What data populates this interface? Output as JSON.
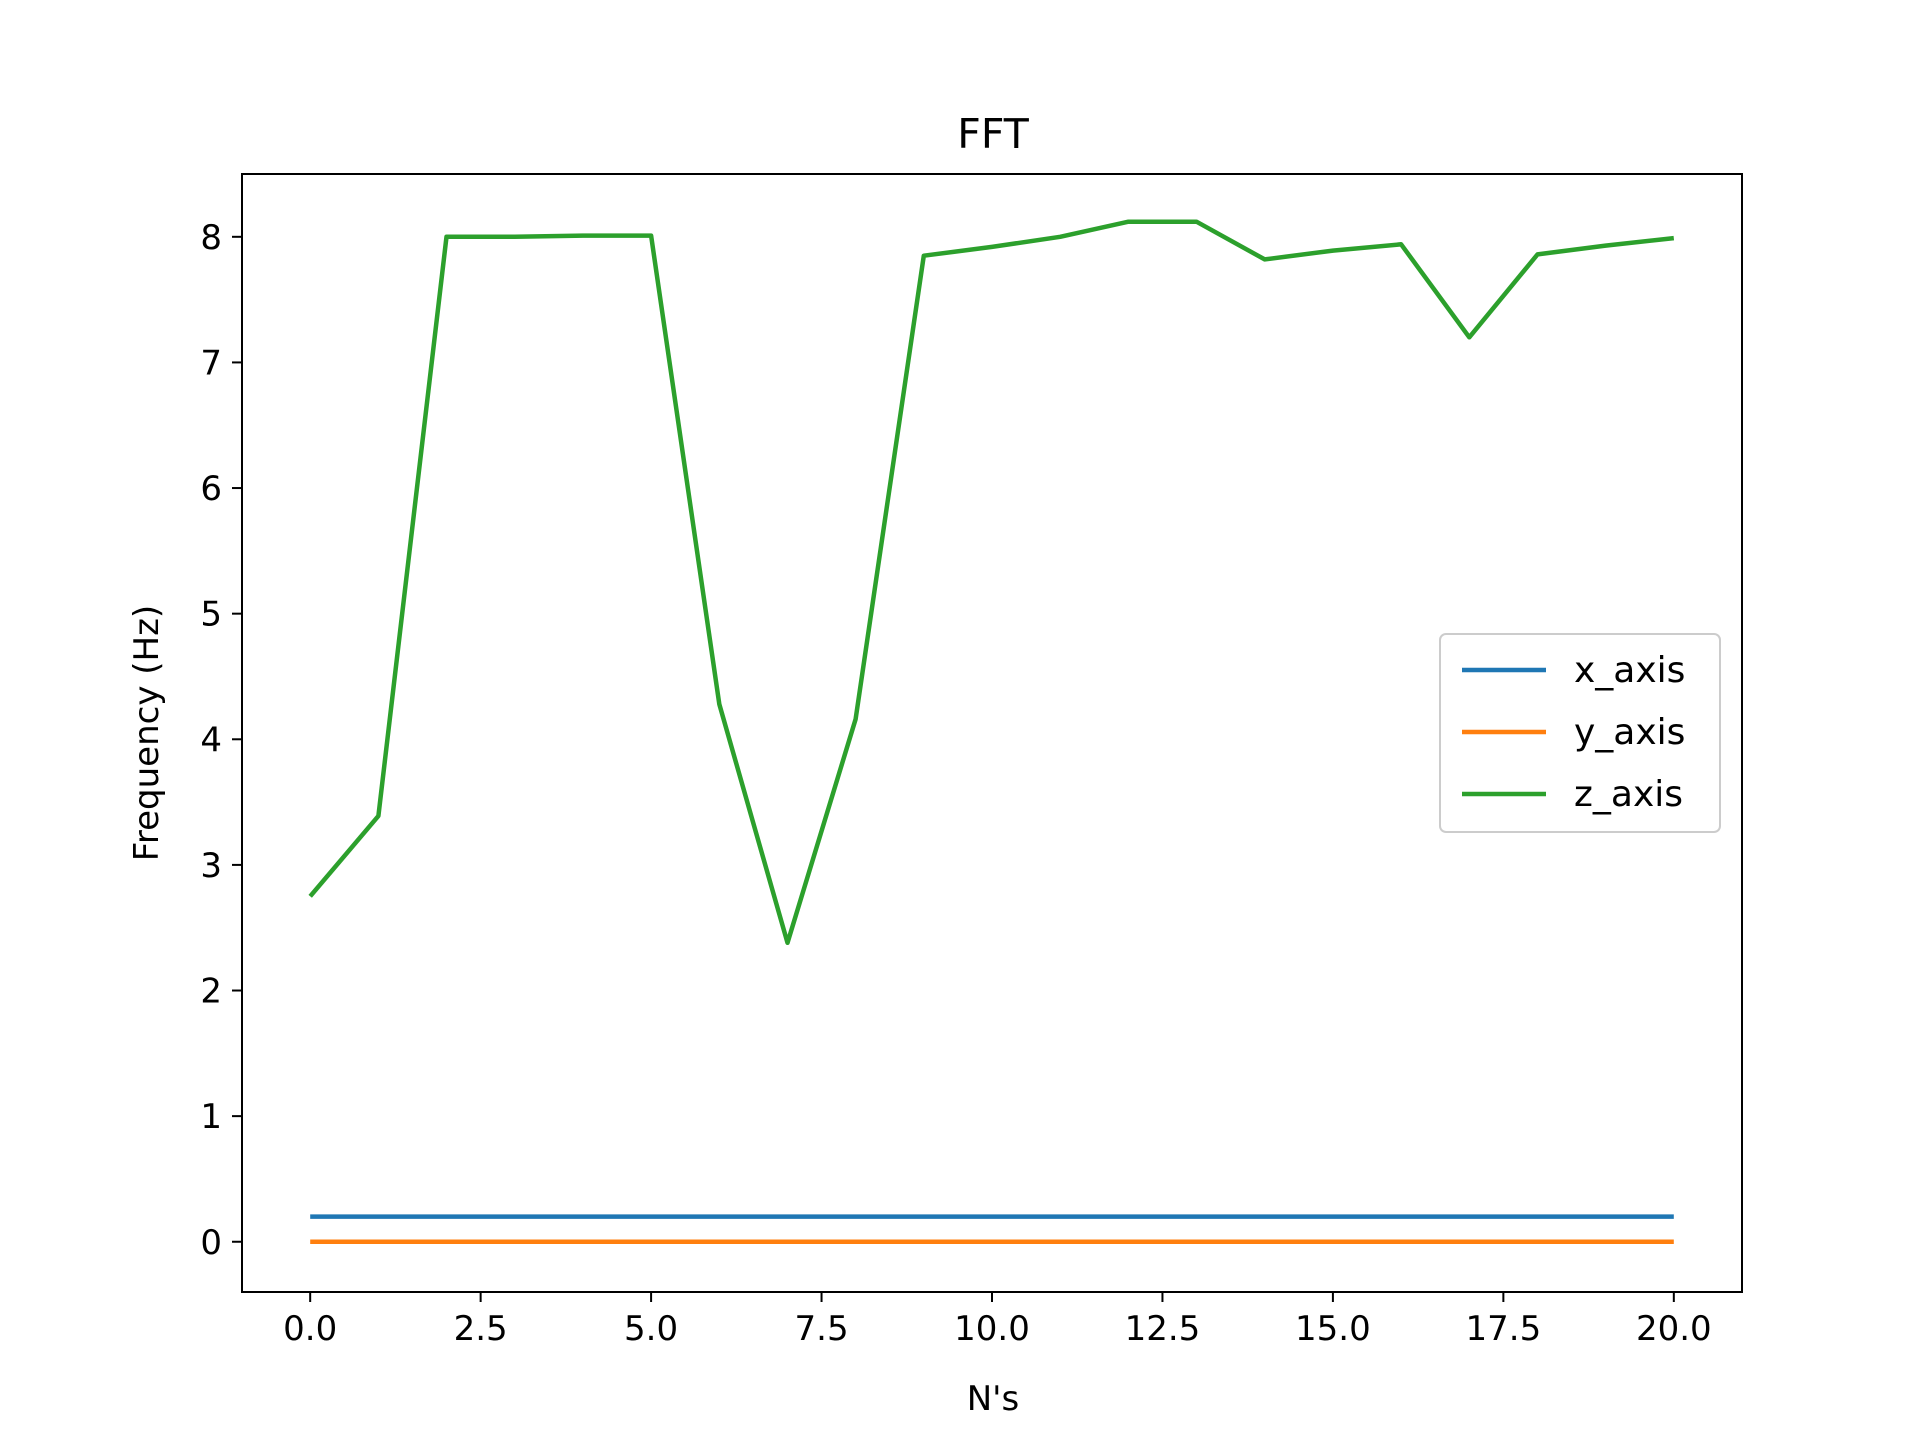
{
  "chart_data": {
    "type": "line",
    "title": "FFT",
    "xlabel": "N's",
    "ylabel": "Frequency (Hz)",
    "xlim": [
      -1,
      21
    ],
    "ylim": [
      -0.4,
      8.5
    ],
    "xticks": [
      0,
      2.5,
      5,
      7.5,
      10,
      12.5,
      15,
      17.5,
      20
    ],
    "xtick_labels": [
      "0.0",
      "2.5",
      "5.0",
      "7.5",
      "10.0",
      "12.5",
      "15.0",
      "17.5",
      "20.0"
    ],
    "yticks": [
      0,
      1,
      2,
      3,
      4,
      5,
      6,
      7,
      8
    ],
    "ytick_labels": [
      "0",
      "1",
      "2",
      "3",
      "4",
      "5",
      "6",
      "7",
      "8"
    ],
    "legend_position": "center-right",
    "grid": false,
    "x": [
      0,
      1,
      2,
      3,
      4,
      5,
      6,
      7,
      8,
      9,
      10,
      11,
      12,
      13,
      14,
      15,
      16,
      17,
      18,
      19,
      20
    ],
    "series": [
      {
        "name": "x_axis",
        "color": "#1f77b4",
        "values": [
          0.2,
          0.2,
          0.2,
          0.2,
          0.2,
          0.2,
          0.2,
          0.2,
          0.2,
          0.2,
          0.2,
          0.2,
          0.2,
          0.2,
          0.2,
          0.2,
          0.2,
          0.2,
          0.2,
          0.2,
          0.2
        ]
      },
      {
        "name": "y_axis",
        "color": "#ff7f0e",
        "values": [
          0,
          0,
          0,
          0,
          0,
          0,
          0,
          0,
          0,
          0,
          0,
          0,
          0,
          0,
          0,
          0,
          0,
          0,
          0,
          0,
          0
        ]
      },
      {
        "name": "z_axis",
        "color": "#2ca02c",
        "values": [
          2.75,
          3.39,
          8.0,
          8.0,
          8.01,
          8.01,
          4.28,
          2.38,
          4.16,
          7.85,
          7.92,
          8.0,
          8.12,
          8.12,
          7.82,
          7.89,
          7.94,
          7.2,
          7.86,
          7.93,
          7.99
        ]
      }
    ]
  }
}
